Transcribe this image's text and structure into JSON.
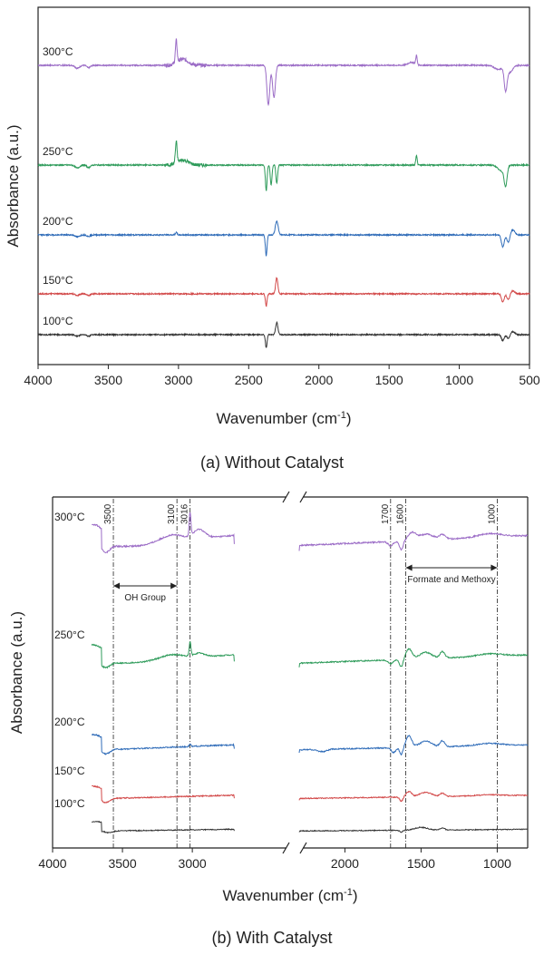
{
  "chart_data": [
    {
      "type": "line",
      "caption": "(a) Without Catalyst",
      "xlabel": "Wavenumber (cm-1)",
      "ylabel": "Absorbance (a.u.)",
      "xlim": [
        4000,
        500
      ],
      "xticks": [
        4000,
        3500,
        3000,
        2500,
        2000,
        1500,
        1000,
        500
      ],
      "grid": false,
      "series": [
        {
          "name": "300°C",
          "color": "#9b6cc6",
          "features": [
            [
              3720,
              -0.3,
              15
            ],
            [
              3640,
              -0.25,
              12
            ],
            [
              3016,
              2.2,
              6
            ],
            [
              2970,
              0.6,
              40
            ],
            [
              2360,
              -4.0,
              10
            ],
            [
              2320,
              -3.2,
              10
            ],
            [
              1305,
              0.9,
              5
            ],
            [
              1340,
              0.3,
              25
            ],
            [
              670,
              -2.3,
              10
            ],
            [
              640,
              -0.7,
              20
            ],
            [
              720,
              -0.4,
              30
            ]
          ]
        },
        {
          "name": "250°C",
          "color": "#2e9b5a",
          "features": [
            [
              3720,
              -0.3,
              15
            ],
            [
              3640,
              -0.25,
              12
            ],
            [
              3016,
              2.1,
              6
            ],
            [
              2970,
              0.5,
              40
            ],
            [
              2375,
              -2.6,
              6
            ],
            [
              2340,
              -2.0,
              6
            ],
            [
              2300,
              -1.8,
              6
            ],
            [
              1305,
              1.0,
              5
            ],
            [
              670,
              -1.9,
              10
            ],
            [
              700,
              -0.6,
              25
            ]
          ]
        },
        {
          "name": "200°C",
          "color": "#2e6bb8",
          "features": [
            [
              3720,
              -0.2,
              15
            ],
            [
              3640,
              -0.15,
              12
            ],
            [
              3016,
              0.25,
              6
            ],
            [
              2375,
              -2.1,
              6
            ],
            [
              2300,
              1.4,
              10
            ],
            [
              690,
              -1.2,
              10
            ],
            [
              650,
              -0.8,
              10
            ],
            [
              620,
              0.5,
              15
            ]
          ]
        },
        {
          "name": "150°C",
          "color": "#d24848",
          "features": [
            [
              3720,
              -0.15,
              15
            ],
            [
              3640,
              -0.15,
              12
            ],
            [
              2375,
              -1.2,
              6
            ],
            [
              2300,
              1.6,
              8
            ],
            [
              690,
              -0.8,
              10
            ],
            [
              650,
              -0.6,
              10
            ],
            [
              620,
              0.3,
              15
            ]
          ]
        },
        {
          "name": "100°C",
          "color": "#333333",
          "features": [
            [
              3720,
              -0.15,
              15
            ],
            [
              3640,
              -0.15,
              12
            ],
            [
              2375,
              -1.3,
              6
            ],
            [
              2300,
              1.2,
              8
            ],
            [
              690,
              -0.6,
              10
            ],
            [
              650,
              -0.4,
              10
            ],
            [
              620,
              0.3,
              15
            ]
          ]
        }
      ]
    },
    {
      "type": "line",
      "caption": "(b) With Catalyst",
      "xlabel": "Wavenumber (cm-1)",
      "ylabel": "Absorbance (a.u.)",
      "xlim": [
        4000,
        800
      ],
      "xticks": [
        4000,
        3500,
        3000,
        2000,
        1500,
        1000
      ],
      "axis_break": [
        2700,
        2300
      ],
      "grid": false,
      "reference_lines": [
        "3500",
        "3100",
        "3016",
        "1700",
        "1600",
        "1000"
      ],
      "annotations": [
        "OH Group",
        "Formate and Methoxy"
      ],
      "series": [
        {
          "name": "300°C",
          "color": "#9b6cc6",
          "features": [
            [
              3720,
              0,
              0
            ],
            [
              3620,
              -0.5,
              30
            ],
            [
              3400,
              -0.2,
              140
            ],
            [
              3150,
              0.4,
              80
            ],
            [
              3016,
              1.6,
              6
            ],
            [
              2950,
              0.6,
              40
            ],
            [
              1700,
              -0.3,
              15
            ],
            [
              1630,
              -0.6,
              12
            ],
            [
              1560,
              0.5,
              25
            ],
            [
              1470,
              0.4,
              50
            ],
            [
              1360,
              0.3,
              20
            ],
            [
              1050,
              0.25,
              80
            ]
          ]
        },
        {
          "name": "250°C",
          "color": "#2e9b5a",
          "features": [
            [
              3720,
              0,
              0
            ],
            [
              3620,
              -0.4,
              30
            ],
            [
              3400,
              -0.1,
              140
            ],
            [
              3150,
              0.35,
              80
            ],
            [
              3016,
              1.1,
              6
            ],
            [
              2950,
              0.3,
              40
            ],
            [
              1700,
              -0.3,
              15
            ],
            [
              1630,
              -0.6,
              12
            ],
            [
              1580,
              0.8,
              20
            ],
            [
              1470,
              0.5,
              40
            ],
            [
              1360,
              0.5,
              15
            ],
            [
              1050,
              0.2,
              80
            ]
          ]
        },
        {
          "name": "200°C",
          "color": "#2e6bb8",
          "features": [
            [
              3720,
              0,
              0
            ],
            [
              3620,
              -0.4,
              30
            ],
            [
              3016,
              0.2,
              6
            ],
            [
              2150,
              -0.2,
              30
            ],
            [
              1680,
              -0.4,
              15
            ],
            [
              1630,
              -0.6,
              10
            ],
            [
              1580,
              1.0,
              18
            ],
            [
              1470,
              0.5,
              40
            ],
            [
              1360,
              0.5,
              15
            ],
            [
              1050,
              0.2,
              80
            ]
          ]
        },
        {
          "name": "150°C",
          "color": "#d24848",
          "features": [
            [
              3720,
              0,
              0
            ],
            [
              3620,
              -0.4,
              30
            ],
            [
              1630,
              -0.4,
              10
            ],
            [
              1580,
              0.5,
              18
            ],
            [
              1470,
              0.4,
              40
            ],
            [
              1360,
              0.3,
              15
            ],
            [
              1050,
              0.1,
              80
            ]
          ]
        },
        {
          "name": "100°C",
          "color": "#333333",
          "features": [
            [
              3720,
              0,
              0
            ],
            [
              3600,
              -0.2,
              30
            ],
            [
              1630,
              -0.2,
              10
            ],
            [
              1500,
              0.3,
              40
            ],
            [
              1360,
              0.2,
              15
            ]
          ]
        }
      ]
    }
  ]
}
